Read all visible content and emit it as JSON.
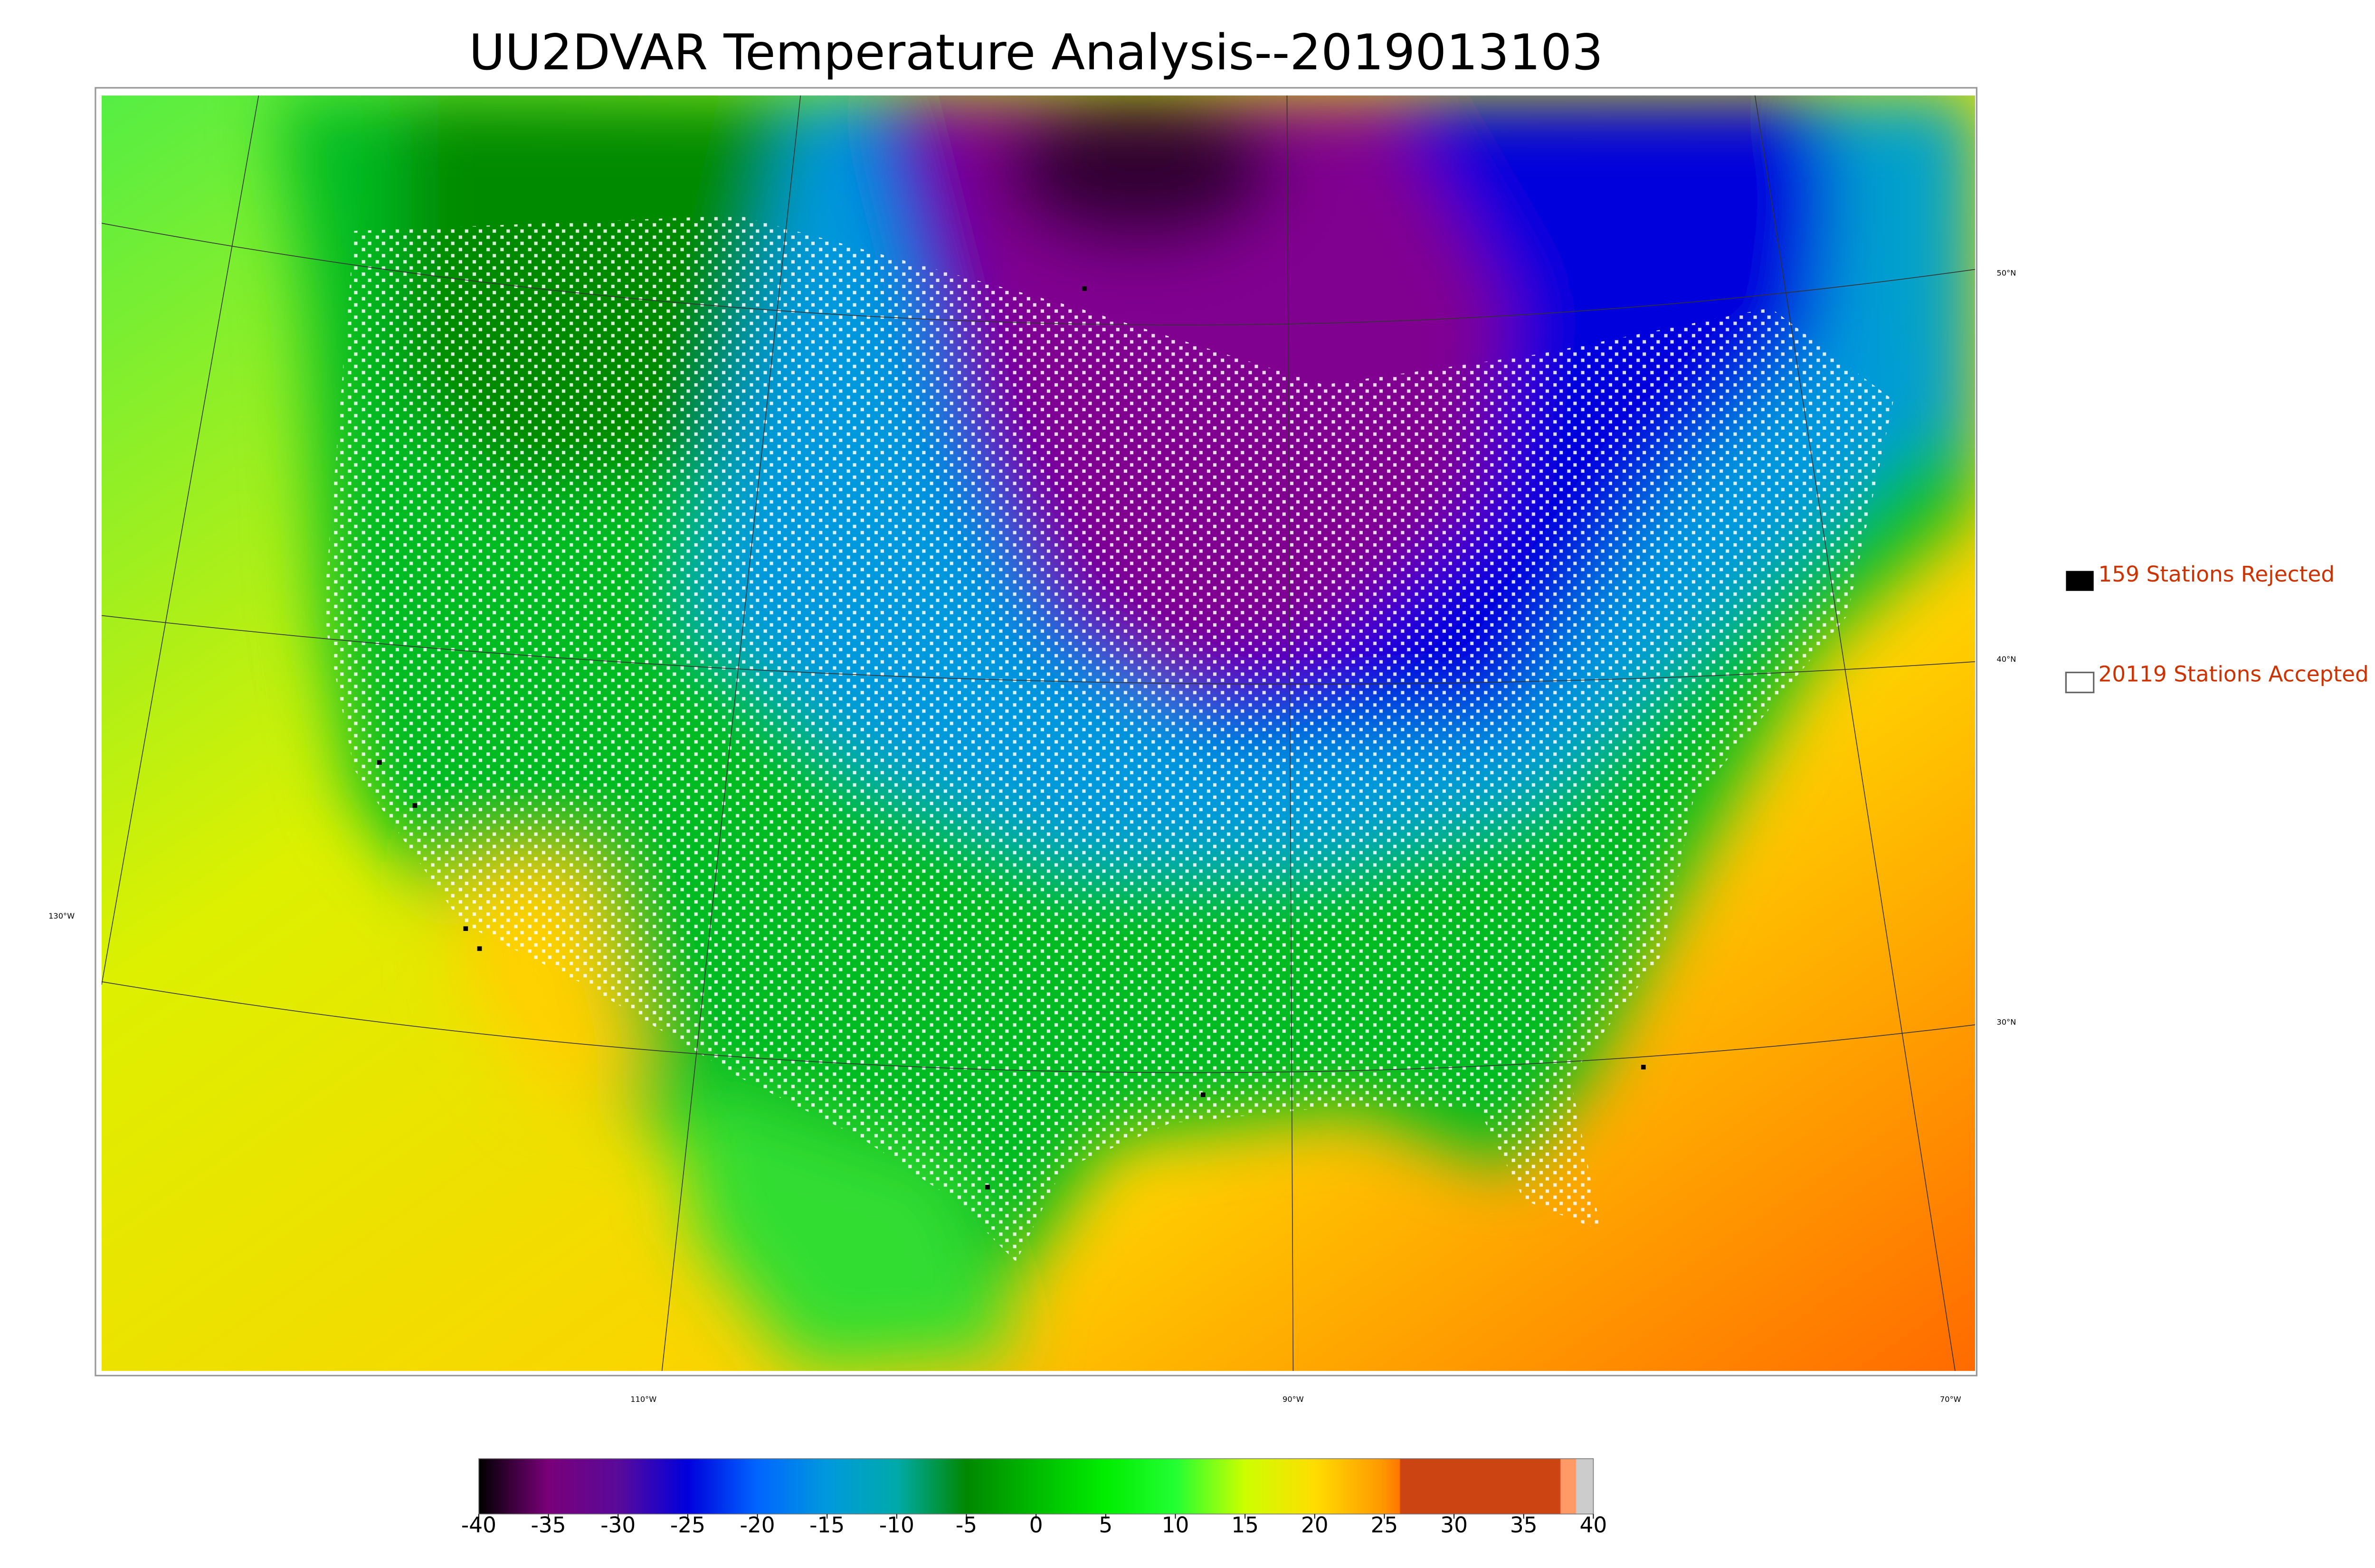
{
  "title": "UU2DVAR Temperature Analysis--2019013103",
  "legend": {
    "rejected": "159 Stations Rejected",
    "accepted": "20119 Stations Accepted"
  },
  "graticule": {
    "lat": [
      "50°N",
      "40°N",
      "30°N"
    ],
    "lon": [
      "130°W",
      "110°W",
      "90°W",
      "70°W"
    ]
  },
  "colorbar": {
    "lim": [
      -40,
      40
    ],
    "ticks": [
      -40,
      -35,
      -30,
      -25,
      -20,
      -15,
      -10,
      -5,
      0,
      5,
      10,
      15,
      20,
      25,
      30,
      35,
      40
    ]
  }
}
